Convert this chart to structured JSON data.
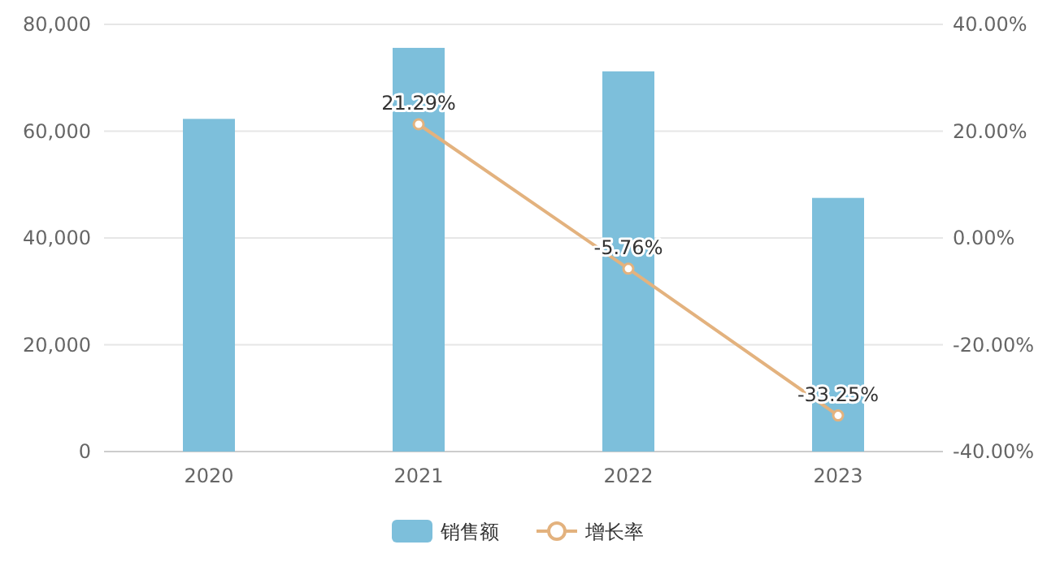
{
  "chart_data": {
    "type": "bar",
    "categories": [
      "2020",
      "2021",
      "2022",
      "2023"
    ],
    "series": [
      {
        "name": "销售额",
        "color": "#7dbfdb",
        "values": [
          62300,
          75600,
          71200,
          47500
        ]
      },
      {
        "name": "增长率",
        "type": "line",
        "axis": "y2",
        "color": "#e3b27e",
        "values": [
          null,
          21.29,
          -5.76,
          -33.25
        ],
        "value_labels": [
          null,
          "21.29%",
          "-5.76%",
          "-33.25%"
        ]
      }
    ],
    "ylim": [
      0,
      80000
    ],
    "yticks": [
      {
        "value": 0,
        "label": "0"
      },
      {
        "value": 20000,
        "label": "20,000"
      },
      {
        "value": 40000,
        "label": "40,000"
      },
      {
        "value": 60000,
        "label": "60,000"
      },
      {
        "value": 80000,
        "label": "80,000"
      }
    ],
    "y2lim": [
      -40,
      40
    ],
    "y2ticks": [
      {
        "value": -40,
        "label": "-40.00%"
      },
      {
        "value": -20,
        "label": "-20.00%"
      },
      {
        "value": 0,
        "label": "0.00%"
      },
      {
        "value": 20,
        "label": "20.00%"
      },
      {
        "value": 40,
        "label": "40.00%"
      }
    ],
    "grid": "y",
    "legend": "bottom",
    "marker": "circle",
    "line_style": "solid"
  }
}
